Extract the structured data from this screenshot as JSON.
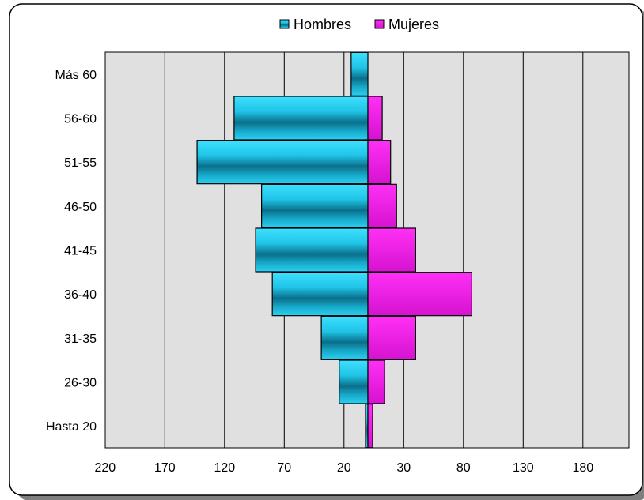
{
  "chart_data": {
    "type": "bar",
    "orientation": "horizontal",
    "subtype": "population-pyramid",
    "categories": [
      "Hasta 20",
      "26-30",
      "31-35",
      "36-40",
      "41-45",
      "46-50",
      "51-55",
      "56-60",
      "Más 60"
    ],
    "series": [
      {
        "name": "Hombres",
        "side": "left",
        "color": "#1fc4e6",
        "values": [
          2,
          24,
          39,
          80,
          94,
          89,
          143,
          112,
          14
        ]
      },
      {
        "name": "Mujeres",
        "side": "right",
        "color": "#e81ee0",
        "values": [
          4,
          14,
          40,
          87,
          40,
          24,
          19,
          12,
          0
        ]
      }
    ],
    "x_tick_labels": [
      "220",
      "170",
      "120",
      "70",
      "20",
      "30",
      "80",
      "130",
      "180"
    ],
    "x_tick_values": [
      -220,
      -170,
      -120,
      -70,
      -20,
      30,
      80,
      130,
      180
    ],
    "xlim": [
      -220,
      220
    ],
    "legend": {
      "position": "top-center",
      "entries": [
        "Hombres",
        "Mujeres"
      ]
    },
    "grid": {
      "vertical": true,
      "horizontal": false
    },
    "plot_background": "#e0e0e0"
  }
}
